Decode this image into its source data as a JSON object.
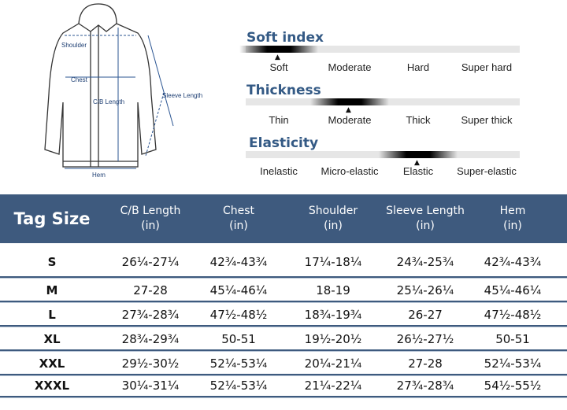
{
  "diagram": {
    "labels": {
      "shoulder": "Shoulder",
      "chest": "Chest",
      "cb_length": "C/B Length",
      "sleeve_length": "Sleeve Length",
      "hem": "Hem"
    }
  },
  "scales": [
    {
      "title": "Soft index",
      "options": [
        "Soft",
        "Moderate",
        "Hard",
        "Super hard"
      ],
      "selected_index": 0
    },
    {
      "title": "Thickness",
      "options": [
        "Thin",
        "Moderate",
        "Thick",
        "Super thick"
      ],
      "selected_index": 1
    },
    {
      "title": "Elasticity",
      "options": [
        "Inelastic",
        "Micro-elastic",
        "Elastic",
        "Super-elastic"
      ],
      "selected_index": 2
    }
  ],
  "table": {
    "headers": [
      {
        "line1": "Tag Size",
        "line2": ""
      },
      {
        "line1": "C/B Length",
        "line2": "(in)"
      },
      {
        "line1": "Chest",
        "line2": "(in)"
      },
      {
        "line1": "Shoulder",
        "line2": "(in)"
      },
      {
        "line1": "Sleeve Length",
        "line2": "(in)"
      },
      {
        "line1": "Hem",
        "line2": "(in)"
      }
    ],
    "rows": [
      [
        "S",
        "26¼-27¼",
        "42¾-43¾",
        "17¼-18¼",
        "24¾-25¾",
        "42¾-43¾"
      ],
      [
        "M",
        "27-28",
        "45¼-46¼",
        "18-19",
        "25¼-26¼",
        "45¼-46¼"
      ],
      [
        "L",
        "27¾-28¾",
        "47½-48½",
        "18¾-19¾",
        "26-27",
        "47½-48½"
      ],
      [
        "XL",
        "28¾-29¾",
        "50-51",
        "19½-20½",
        "26½-27½",
        "50-51"
      ],
      [
        "XXL",
        "29½-30½",
        "52¼-53¼",
        "20¼-21¼",
        "27-28",
        "52¼-53¼"
      ],
      [
        "XXXL",
        "30¼-31¼",
        "52¼-53¼",
        "21¼-22¼",
        "27¾-28¾",
        "54½-55½"
      ]
    ]
  },
  "colors": {
    "header_bg": "#3e5a7e",
    "title": "#345a85"
  }
}
